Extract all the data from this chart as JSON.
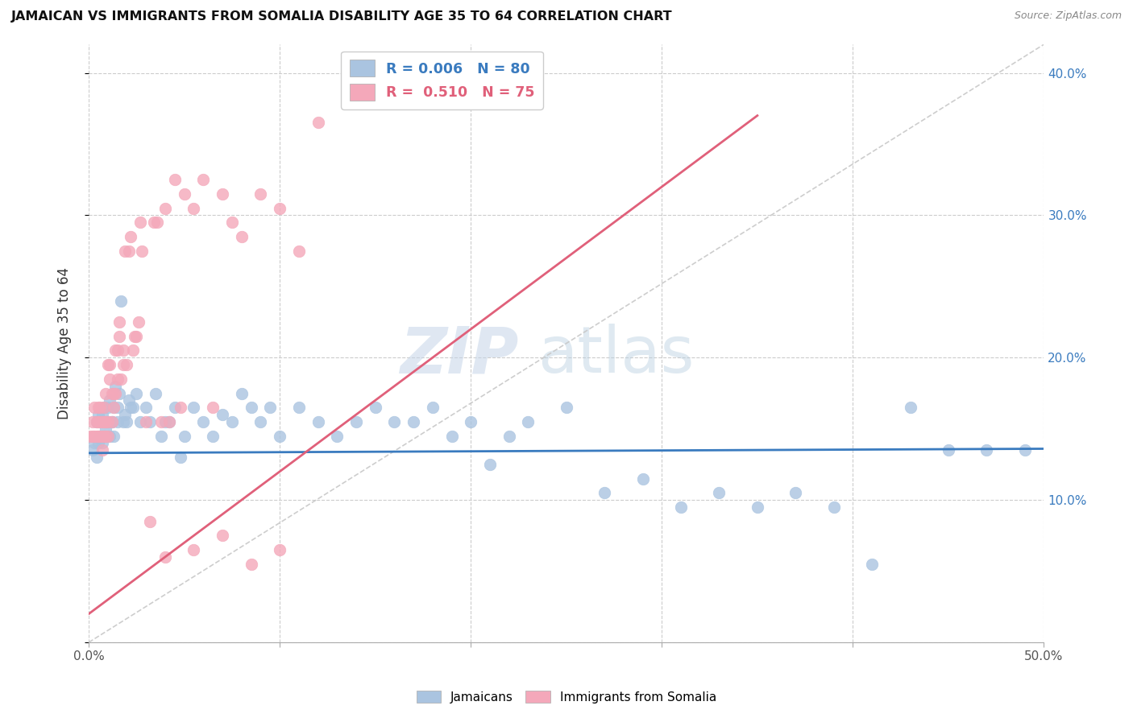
{
  "title": "JAMAICAN VS IMMIGRANTS FROM SOMALIA DISABILITY AGE 35 TO 64 CORRELATION CHART",
  "source": "Source: ZipAtlas.com",
  "ylabel": "Disability Age 35 to 64",
  "x_min": 0.0,
  "x_max": 0.5,
  "y_min": 0.0,
  "y_max": 0.42,
  "x_ticks": [
    0.0,
    0.1,
    0.2,
    0.3,
    0.4,
    0.5
  ],
  "x_tick_labels": [
    "0.0%",
    "",
    "",
    "",
    "",
    "50.0%"
  ],
  "y_ticks": [
    0.0,
    0.1,
    0.2,
    0.3,
    0.4
  ],
  "y_tick_labels_right": [
    "",
    "10.0%",
    "20.0%",
    "30.0%",
    "40.0%"
  ],
  "R_blue": "0.006",
  "N_blue": "80",
  "R_pink": "0.510",
  "N_pink": "75",
  "blue_color": "#aac4e0",
  "pink_color": "#f4a8ba",
  "blue_line_color": "#3a7bbf",
  "pink_line_color": "#e0607a",
  "diag_line_color": "#c8c8c8",
  "watermark_zip": "ZIP",
  "watermark_atlas": "atlas",
  "legend_blue_label": "Jamaicans",
  "legend_pink_label": "Immigrants from Somalia",
  "jamaican_x": [
    0.002,
    0.003,
    0.004,
    0.004,
    0.005,
    0.005,
    0.006,
    0.006,
    0.007,
    0.007,
    0.008,
    0.008,
    0.009,
    0.009,
    0.01,
    0.01,
    0.011,
    0.011,
    0.012,
    0.012,
    0.013,
    0.013,
    0.014,
    0.015,
    0.015,
    0.016,
    0.017,
    0.018,
    0.019,
    0.02,
    0.021,
    0.022,
    0.023,
    0.025,
    0.027,
    0.03,
    0.032,
    0.035,
    0.038,
    0.04,
    0.042,
    0.045,
    0.048,
    0.05,
    0.055,
    0.06,
    0.065,
    0.07,
    0.075,
    0.08,
    0.085,
    0.09,
    0.095,
    0.1,
    0.11,
    0.12,
    0.13,
    0.14,
    0.15,
    0.16,
    0.17,
    0.18,
    0.19,
    0.2,
    0.21,
    0.22,
    0.23,
    0.25,
    0.27,
    0.29,
    0.31,
    0.33,
    0.35,
    0.37,
    0.39,
    0.41,
    0.43,
    0.45,
    0.47,
    0.49
  ],
  "jamaican_y": [
    0.135,
    0.14,
    0.155,
    0.13,
    0.14,
    0.16,
    0.145,
    0.155,
    0.14,
    0.16,
    0.145,
    0.165,
    0.15,
    0.155,
    0.155,
    0.165,
    0.145,
    0.17,
    0.155,
    0.155,
    0.165,
    0.145,
    0.18,
    0.155,
    0.165,
    0.175,
    0.24,
    0.155,
    0.16,
    0.155,
    0.17,
    0.165,
    0.165,
    0.175,
    0.155,
    0.165,
    0.155,
    0.175,
    0.145,
    0.155,
    0.155,
    0.165,
    0.13,
    0.145,
    0.165,
    0.155,
    0.145,
    0.16,
    0.155,
    0.175,
    0.165,
    0.155,
    0.165,
    0.145,
    0.165,
    0.155,
    0.145,
    0.155,
    0.165,
    0.155,
    0.155,
    0.165,
    0.145,
    0.155,
    0.125,
    0.145,
    0.155,
    0.165,
    0.105,
    0.115,
    0.095,
    0.105,
    0.095,
    0.105,
    0.095,
    0.055,
    0.165,
    0.135,
    0.135,
    0.135
  ],
  "somalia_x": [
    0.001,
    0.002,
    0.002,
    0.003,
    0.003,
    0.004,
    0.004,
    0.005,
    0.005,
    0.005,
    0.006,
    0.006,
    0.006,
    0.007,
    0.007,
    0.007,
    0.008,
    0.008,
    0.008,
    0.009,
    0.009,
    0.009,
    0.01,
    0.01,
    0.01,
    0.011,
    0.011,
    0.012,
    0.012,
    0.013,
    0.013,
    0.014,
    0.014,
    0.015,
    0.015,
    0.016,
    0.016,
    0.017,
    0.018,
    0.018,
    0.019,
    0.02,
    0.021,
    0.022,
    0.023,
    0.024,
    0.025,
    0.026,
    0.027,
    0.028,
    0.03,
    0.032,
    0.034,
    0.036,
    0.038,
    0.04,
    0.042,
    0.045,
    0.048,
    0.05,
    0.055,
    0.06,
    0.065,
    0.07,
    0.075,
    0.08,
    0.09,
    0.1,
    0.11,
    0.12,
    0.04,
    0.055,
    0.07,
    0.085,
    0.1
  ],
  "somalia_y": [
    0.145,
    0.145,
    0.155,
    0.145,
    0.165,
    0.145,
    0.155,
    0.145,
    0.155,
    0.165,
    0.145,
    0.155,
    0.165,
    0.135,
    0.145,
    0.155,
    0.145,
    0.155,
    0.165,
    0.145,
    0.175,
    0.155,
    0.145,
    0.155,
    0.195,
    0.185,
    0.195,
    0.175,
    0.155,
    0.175,
    0.165,
    0.175,
    0.205,
    0.205,
    0.185,
    0.215,
    0.225,
    0.185,
    0.205,
    0.195,
    0.275,
    0.195,
    0.275,
    0.285,
    0.205,
    0.215,
    0.215,
    0.225,
    0.295,
    0.275,
    0.155,
    0.085,
    0.295,
    0.295,
    0.155,
    0.305,
    0.155,
    0.325,
    0.165,
    0.315,
    0.305,
    0.325,
    0.165,
    0.315,
    0.295,
    0.285,
    0.315,
    0.305,
    0.275,
    0.365,
    0.06,
    0.065,
    0.075,
    0.055,
    0.065
  ]
}
